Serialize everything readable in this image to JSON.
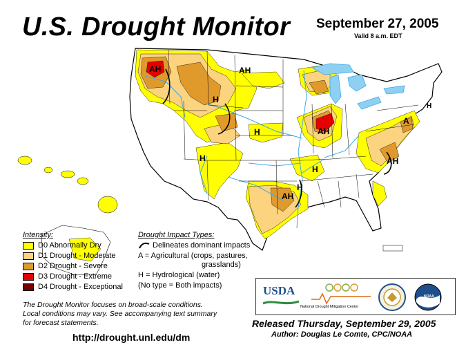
{
  "header": {
    "title": "U.S. Drought Monitor",
    "date": "September 27, 2005",
    "valid": "Valid 8 a.m. EDT"
  },
  "legend": {
    "intensity_heading": "Intensity:",
    "items": [
      {
        "label": "D0 Abnormally Dry",
        "color": "#ffff00"
      },
      {
        "label": "D1 Drought - Moderate",
        "color": "#fcd37f"
      },
      {
        "label": "D2 Drought - Severe",
        "color": "#e09a2c"
      },
      {
        "label": "D3 Drought - Extreme",
        "color": "#e60000"
      },
      {
        "label": "D4 Drought - Exceptional",
        "color": "#730000"
      }
    ],
    "impact_heading": "Drought Impact Types:",
    "impact_dominant": "Delineates dominant impacts",
    "impact_a1": "A = Agricultural (crops, pastures,",
    "impact_a2": "grasslands)",
    "impact_h": "H = Hydrological (water)",
    "impact_none": "(No type = Both impacts)"
  },
  "map_labels": {
    "ah_west": "AH",
    "ah_montana": "AH",
    "h_wyoming": "H",
    "h_nebraska": "H",
    "h_colorado": "H",
    "ah_illinois": "AH",
    "h_tennessee": "H",
    "ah_arkansas": "AH",
    "h_louisiana": "H",
    "a_pennsylvania": "A",
    "ah_virginia": "AH",
    "h_northeast": "H"
  },
  "footer": {
    "note_1": "The Drought Monitor focuses on broad-scale conditions.",
    "note_2": "Local conditions may vary.  See accompanying text summary",
    "note_3": "for forecast statements.",
    "url": "http://drought.unl.edu/dm",
    "released": "Released Thursday, September 29, 2005",
    "author": "Author:  Douglas Le Comte, CPC/NOAA"
  },
  "logos": {
    "usda": "USDA",
    "ndmc": "National Drought Mitigation Center",
    "noaa": "NOAA"
  },
  "colors": {
    "water": "#3ea9e8",
    "lake": "#8fd0f2",
    "land": "#ffffff",
    "border": "#000000"
  }
}
